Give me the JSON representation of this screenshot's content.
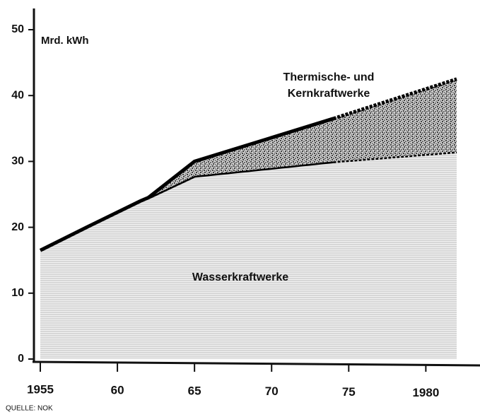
{
  "chart_data": {
    "type": "stacked_area",
    "y_label": "Mrd. kWh",
    "source": "QUELLE: NOK",
    "x": [
      1955,
      1958,
      1961.5,
      1962,
      1965,
      1974,
      1982
    ],
    "series": [
      {
        "name": "Wasserkraftwerke",
        "color": "#d4d4d4",
        "values": [
          16.5,
          20,
          24,
          24.5,
          27.8,
          30,
          31.5
        ]
      },
      {
        "name": "Thermische- und Kernkraftwerke",
        "color": "#4a4a4a",
        "values": [
          null,
          null,
          null,
          0,
          2.2,
          6.5,
          11
        ]
      }
    ],
    "dashed_from": 1974,
    "xlim": [
      1955,
      1982
    ],
    "xticks": [
      1955,
      {
        "value": 1960,
        "label": "60"
      },
      {
        "value": 1965,
        "label": "65"
      },
      {
        "value": 1970,
        "label": "70"
      },
      {
        "value": 1975,
        "label": "75"
      },
      1980
    ],
    "ylim": [
      0,
      50
    ],
    "yticks": [
      0,
      10,
      20,
      30,
      40,
      50
    ]
  }
}
